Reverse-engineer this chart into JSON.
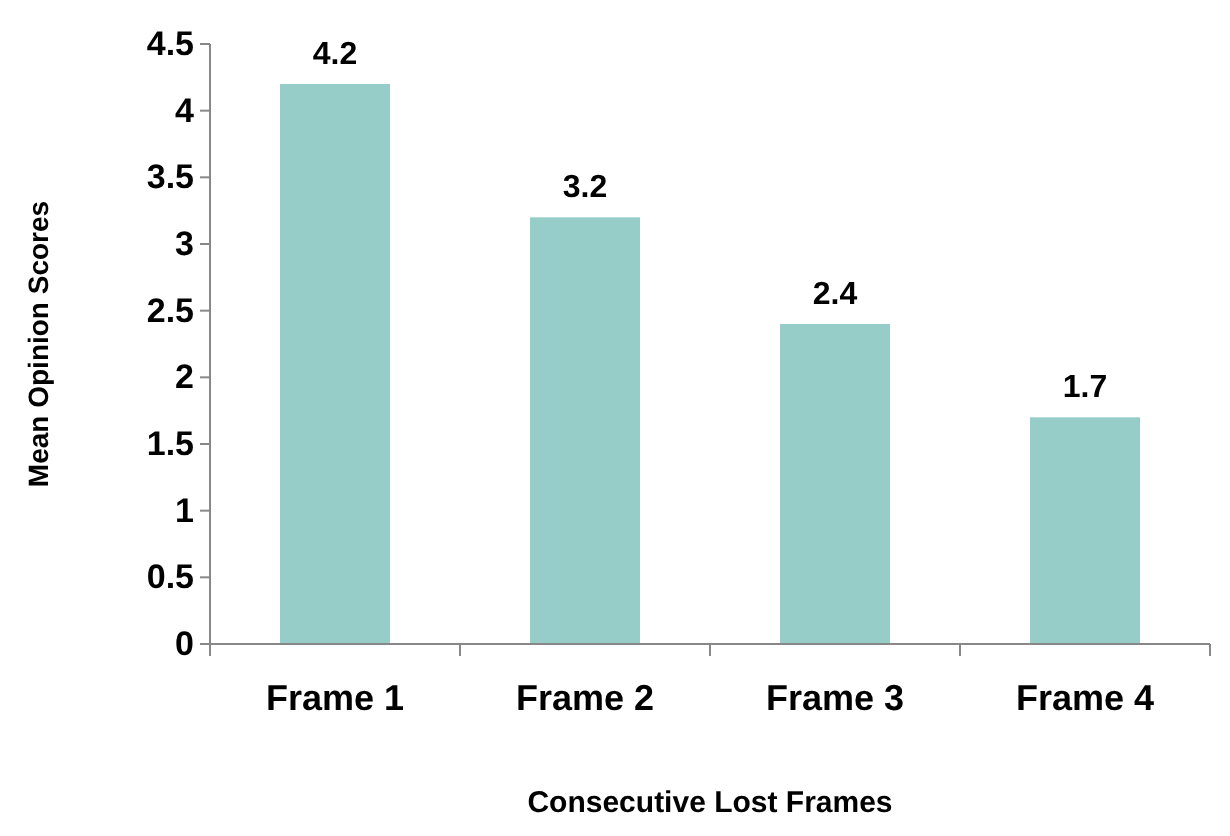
{
  "chart_data": {
    "type": "bar",
    "xlabel": "Consecutive Lost Frames",
    "ylabel": "Mean Opinion Scores",
    "categories": [
      "Frame 1",
      "Frame 2",
      "Frame 3",
      "Frame 4"
    ],
    "values": [
      4.2,
      3.2,
      2.4,
      1.7
    ],
    "color": "#96cdc9",
    "ylim": [
      0,
      4.5
    ],
    "yticks": [
      0,
      0.5,
      1,
      1.5,
      2,
      2.5,
      3,
      3.5,
      4,
      4.5
    ],
    "data_labels": true,
    "grid": false
  }
}
